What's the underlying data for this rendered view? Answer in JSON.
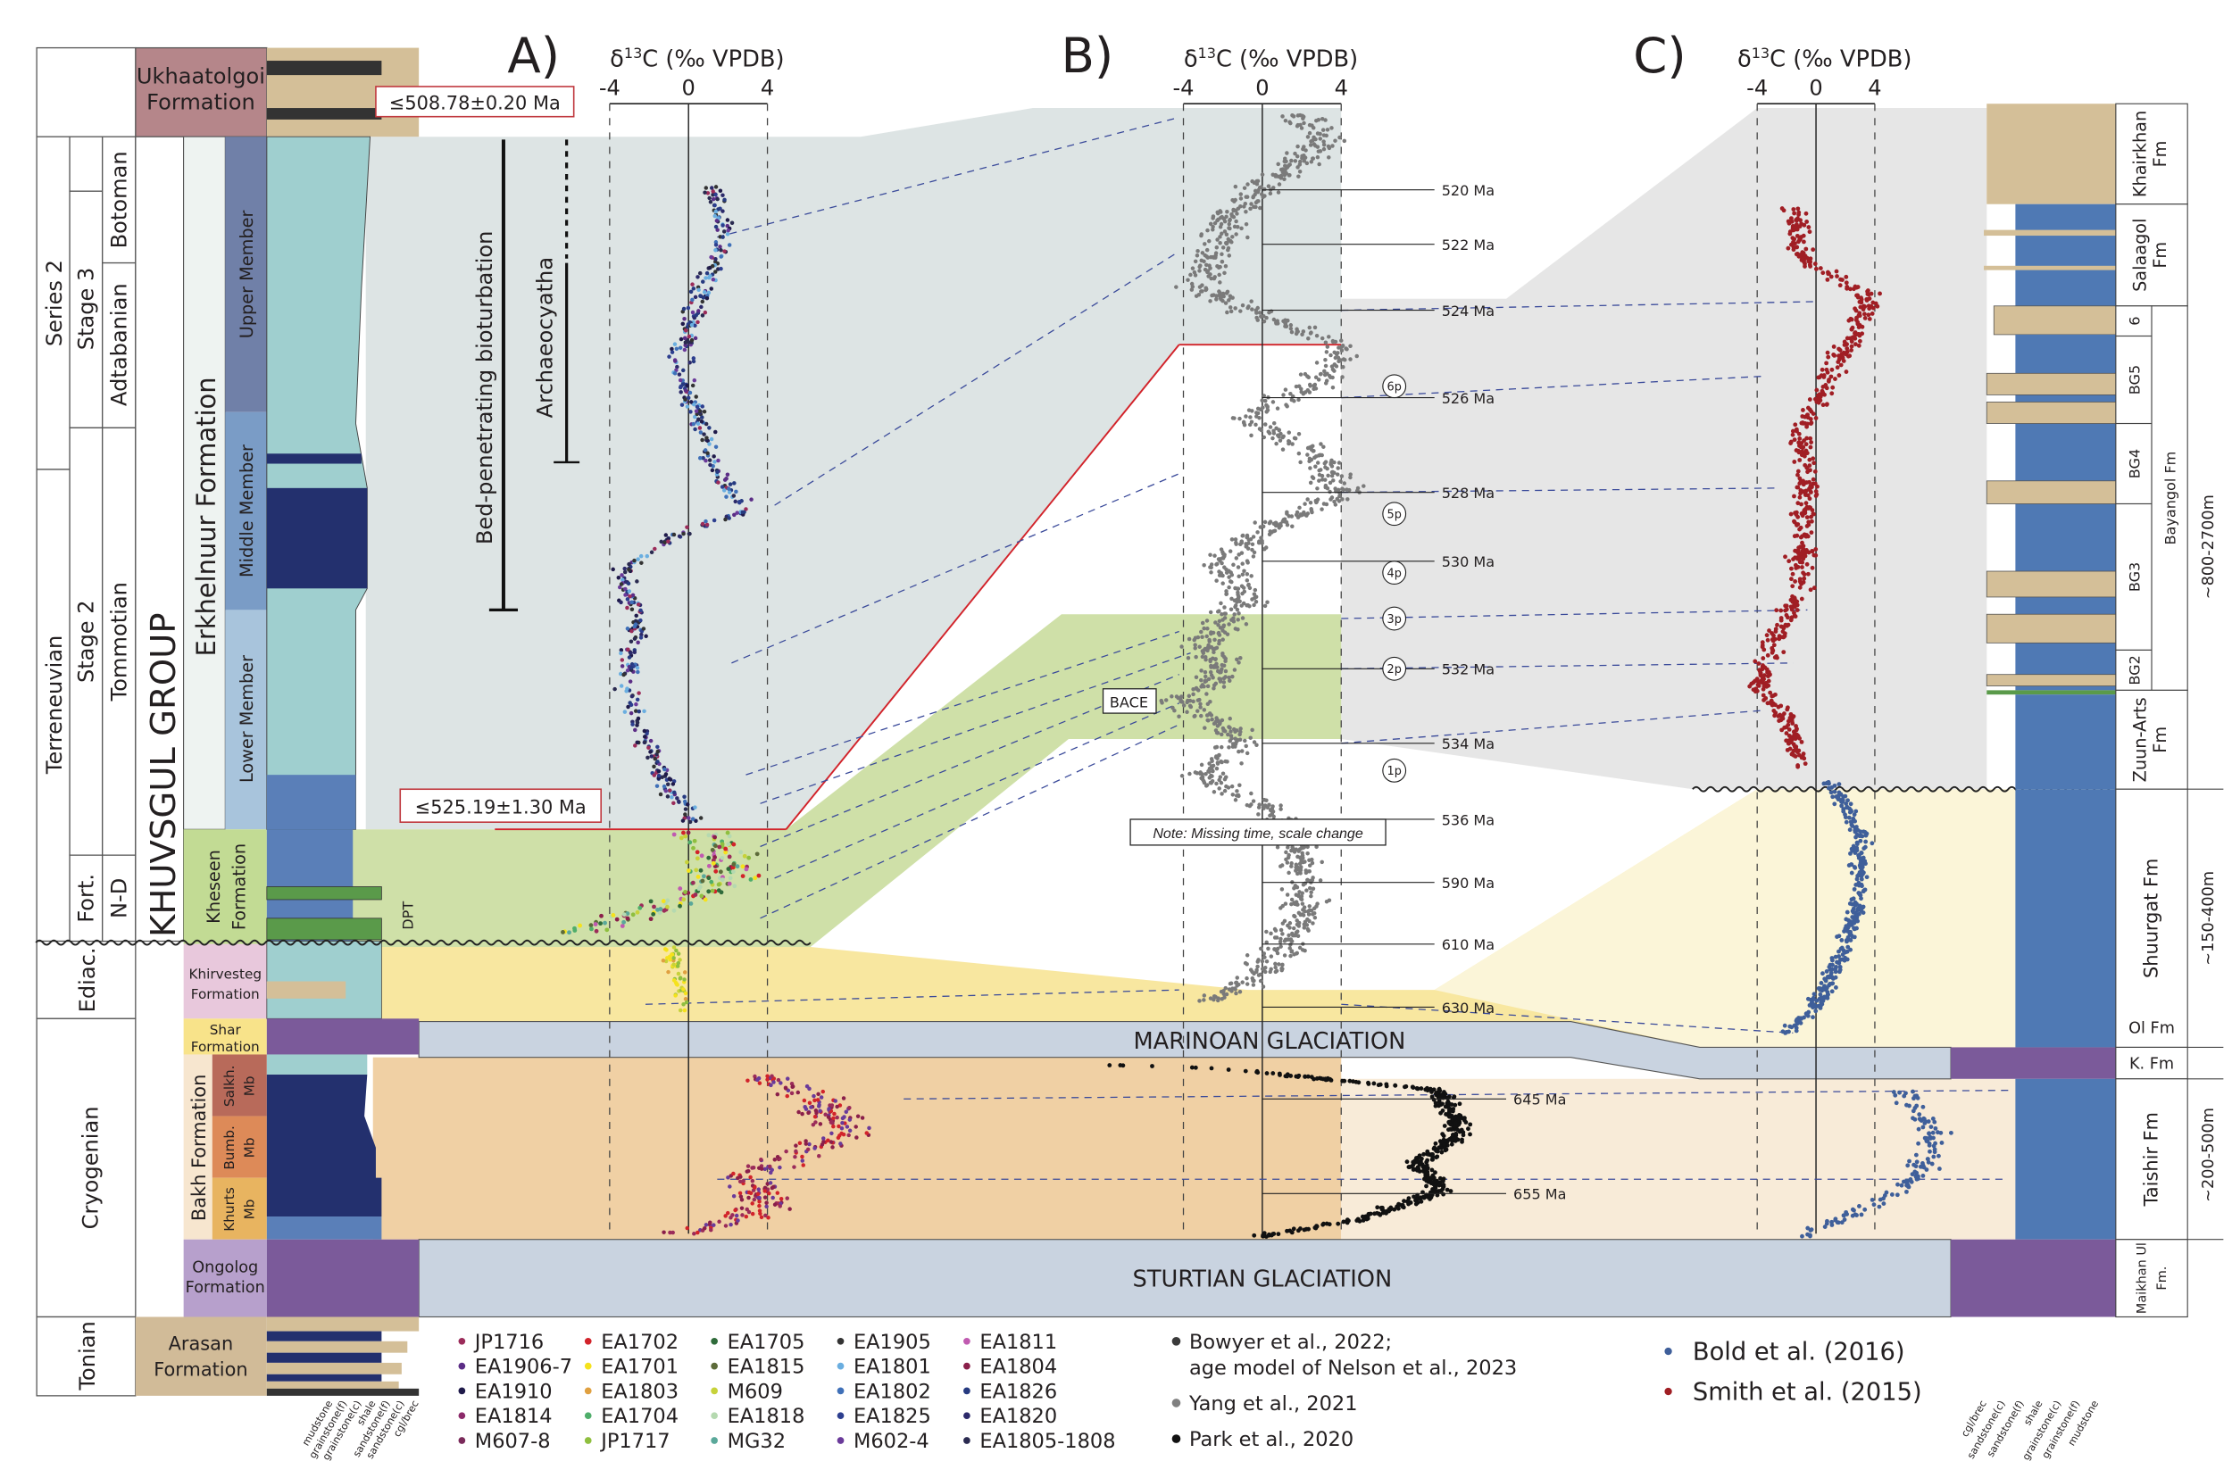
{
  "panels": {
    "a": {
      "label": "A)",
      "title_prefix": "δ",
      "title_sup": "13",
      "title_rest": "C (‰ VPDB)",
      "ticks": [
        "-4",
        "0",
        "4"
      ]
    },
    "b": {
      "label": "B)",
      "title_prefix": "δ",
      "title_sup": "13",
      "title_rest": "C (‰ VPDB)",
      "ticks": [
        "-4",
        "0",
        "4"
      ]
    },
    "c": {
      "label": "C)",
      "title_prefix": "δ",
      "title_sup": "13",
      "title_rest": "C (‰ VPDB)",
      "ticks": [
        "-4",
        "0",
        "4"
      ]
    }
  },
  "left_column": {
    "series": [
      "Series 2",
      "Terreneuvian",
      "Ediac.",
      "Cryogenian",
      "Tonian"
    ],
    "stages": [
      "Stage 3",
      "Stage 2",
      "Fort."
    ],
    "regional_stages": [
      "Botoman",
      "Adtabanian",
      "Tommotian",
      "N-D"
    ],
    "group": "KHUVSGUL GROUP",
    "formations": {
      "ukhaatolgoi": [
        "Ukhaatolgoi",
        "Formation"
      ],
      "erkhelnuur": "Erkhelnuur Formation",
      "upper": "Upper Member",
      "middle": "Middle Member",
      "lower": "Lower Member",
      "kheseen": [
        "Kheseen",
        "Formation"
      ],
      "khirvesteg": [
        "Khirvesteg",
        "Formation"
      ],
      "shar": [
        "Shar",
        "Formation"
      ],
      "bakh": "Bakh Formation",
      "salkh": [
        "Salkh.",
        "Mb"
      ],
      "bumb": [
        "Bumb.",
        "Mb"
      ],
      "khurts": [
        "Khurts",
        "Mb"
      ],
      "ongolog": [
        "Ongolog",
        "Formation"
      ],
      "arasan": [
        "Arasan",
        "Formation"
      ]
    },
    "lithology_key": [
      "mudstone",
      "grainstone(f)",
      "grainstone(c)",
      "shale",
      "sandstone(f)",
      "sandstone(c)",
      "cgl/brec"
    ],
    "dpt": "DPT"
  },
  "annotations": {
    "date_top": "≤508.78±0.20 Ma",
    "date_bottom": "≤525.19±1.30 Ma",
    "bioturbation": "Bed-penetrating bioturbation",
    "archaeocyatha": "Archaeocyatha",
    "bace": "BACE",
    "note": "Note: Missing time, scale change",
    "marinoan": "MARINOAN GLACIATION",
    "sturtian": "STURTIAN GLACIATION"
  },
  "ages": [
    "520 Ma",
    "522 Ma",
    "524 Ma",
    "526 Ma",
    "528 Ma",
    "530 Ma",
    "532 Ma",
    "534 Ma",
    "536 Ma",
    "590 Ma",
    "610 Ma",
    "630 Ma",
    "645 Ma",
    "655 Ma"
  ],
  "peaks": [
    "6p",
    "5p",
    "4p",
    "3p",
    "2p",
    "1p"
  ],
  "right_column": {
    "formations": [
      "Khairkhan Fm",
      "Salaagol Fm",
      "6",
      "BG5",
      "BG4",
      "BG3",
      "BG2",
      "Bayangol Fm",
      "Zuun-Arts Fm",
      "Shuurgat Fm",
      "Ol Fm",
      "K. Fm",
      "Taishir Fm",
      "Maikhan Ul Fm."
    ],
    "thickness": [
      "~800-2700m",
      "~150-400m",
      "~200-500m"
    ],
    "lithology_key": [
      "cgl/brec",
      "sandstone(c)",
      "sandstone(f)",
      "shale",
      "grainstone(c)",
      "grainstone(f)",
      "mudstone"
    ]
  },
  "legend_samples": [
    {
      "label": "JP1716",
      "color": "#9b2c5a"
    },
    {
      "label": "EA1906-7",
      "color": "#5b2d86"
    },
    {
      "label": "EA1910",
      "color": "#1f1a4a"
    },
    {
      "label": "EA1814",
      "color": "#8c2a6a"
    },
    {
      "label": "M607-8",
      "color": "#7a2a5a"
    },
    {
      "label": "EA1702",
      "color": "#d2232a"
    },
    {
      "label": "EA1701",
      "color": "#f5e21c"
    },
    {
      "label": "EA1803",
      "color": "#e0a040"
    },
    {
      "label": "EA1704",
      "color": "#4fae6a"
    },
    {
      "label": "JP1717",
      "color": "#8fbf3f"
    },
    {
      "label": "EA1705",
      "color": "#2f6b3a"
    },
    {
      "label": "EA1815",
      "color": "#5d6b3a"
    },
    {
      "label": "M609",
      "color": "#c7d23a"
    },
    {
      "label": "EA1818",
      "color": "#b5d9b0"
    },
    {
      "label": "MG32",
      "color": "#5aa89a"
    },
    {
      "label": "EA1905",
      "color": "#333333"
    },
    {
      "label": "EA1801",
      "color": "#6aaee0"
    },
    {
      "label": "EA1802",
      "color": "#3f70b8"
    },
    {
      "label": "EA1825",
      "color": "#2d3f8f"
    },
    {
      "label": "M602-4",
      "color": "#6a3a9a"
    },
    {
      "label": "EA1811",
      "color": "#c05ab0"
    },
    {
      "label": "EA1804",
      "color": "#8a1f4a"
    },
    {
      "label": "EA1826",
      "color": "#263a80"
    },
    {
      "label": "EA1820",
      "color": "#2c2a6a"
    },
    {
      "label": "EA1805-1808",
      "color": "#2a2a50"
    }
  ],
  "legend_b": [
    {
      "label": "Bowyer et al., 2022;",
      "label2": "age model of Nelson et al., 2023",
      "color": "#3a3a3a"
    },
    {
      "label": "Yang et al., 2021",
      "color": "#808080"
    },
    {
      "label": "Park et al., 2020",
      "color": "#111111"
    }
  ],
  "legend_c": [
    {
      "label": "Bold et al. (2016)",
      "color": "#3f5f9a"
    },
    {
      "label": "Smith et al. (2015)",
      "color": "#a01e24"
    }
  ],
  "colors": {
    "cambrian_band": "#dde4e4",
    "right_grey_band": "#e6e6e6",
    "kheseen_band": "#cfe0a8",
    "ediacaran_band": "#f8e7a0",
    "glaciation": "#c9d3e0",
    "bakh_band": "#f0d0a4",
    "taishir_band": "#f8ebd8",
    "yang": "#7a7a7a",
    "park": "#111111",
    "smith": "#a01e24",
    "bold": "#3f5f9a"
  }
}
